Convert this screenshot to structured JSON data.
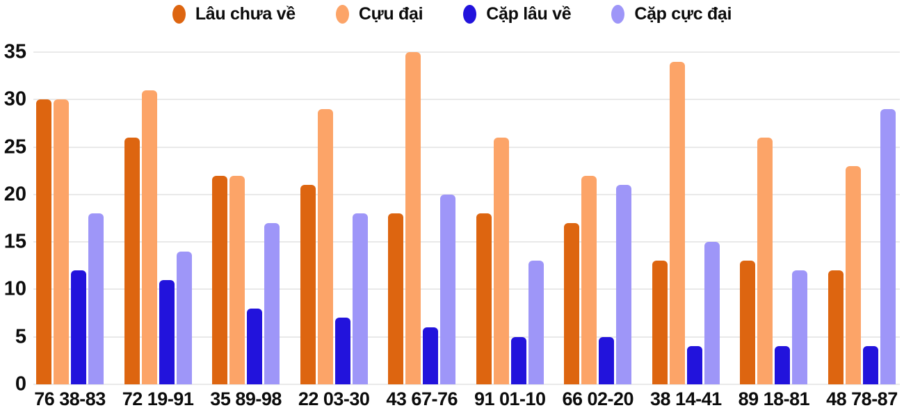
{
  "chart_data": {
    "type": "bar",
    "title": "",
    "xlabel": "",
    "ylabel": "",
    "ylim": [
      0,
      35
    ],
    "yticks": [
      0,
      5,
      10,
      15,
      20,
      25,
      30,
      35
    ],
    "grid": "horizontal",
    "legend_position": "top",
    "categories": [
      "76 38-83",
      "72 19-91",
      "35 89-98",
      "22 03-30",
      "43 67-76",
      "91 01-10",
      "66 02-20",
      "38 14-41",
      "89 18-81",
      "48 78-87"
    ],
    "series": [
      {
        "name": "Lâu chưa về",
        "color": "#dd6510",
        "values": [
          30,
          26,
          22,
          21,
          18,
          18,
          17,
          13,
          13,
          12
        ]
      },
      {
        "name": "Cựu đại",
        "color": "#fca468",
        "values": [
          30,
          31,
          22,
          29,
          35,
          26,
          22,
          34,
          26,
          23
        ]
      },
      {
        "name": "Cặp lâu về",
        "color": "#2213dc",
        "values": [
          12,
          11,
          8,
          7,
          6,
          5,
          5,
          4,
          4,
          4
        ]
      },
      {
        "name": "Cặp cực đại",
        "color": "#9e96f8",
        "values": [
          18,
          14,
          17,
          18,
          20,
          13,
          21,
          15,
          12,
          29
        ]
      }
    ]
  },
  "colors": {
    "grid_line": "#e9e9e9",
    "label_text": "#0c0c0c",
    "background": "#ffffff"
  }
}
